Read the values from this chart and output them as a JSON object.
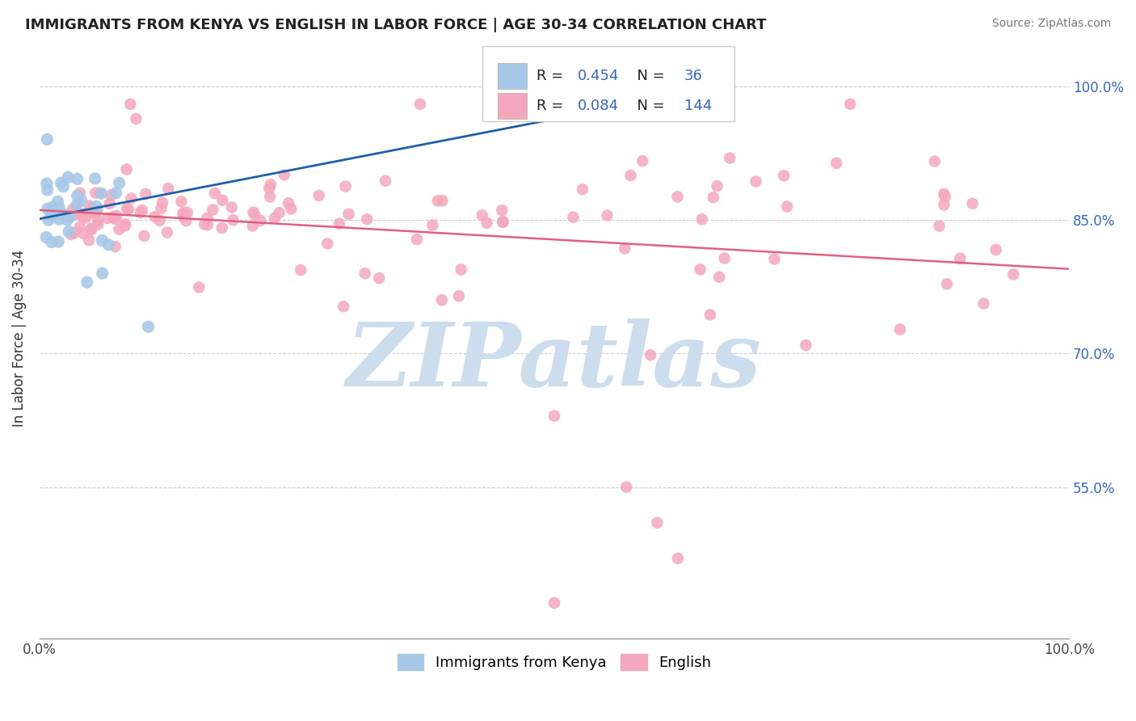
{
  "title": "IMMIGRANTS FROM KENYA VS ENGLISH IN LABOR FORCE | AGE 30-34 CORRELATION CHART",
  "source": "Source: ZipAtlas.com",
  "ylabel": "In Labor Force | Age 30-34",
  "xlim": [
    0.0,
    1.0
  ],
  "ylim": [
    0.38,
    1.055
  ],
  "right_yticks": [
    0.55,
    0.7,
    0.85,
    1.0
  ],
  "right_yticklabels": [
    "55.0%",
    "70.0%",
    "85.0%",
    "100.0%"
  ],
  "blue_color": "#a8c8e8",
  "pink_color": "#f4a8bc",
  "blue_line_color": "#2060a8",
  "pink_line_color": "#e06080",
  "watermark": "ZIPatlas",
  "watermark_color": "#ccdded",
  "blue_seed": 77,
  "pink_seed": 42
}
